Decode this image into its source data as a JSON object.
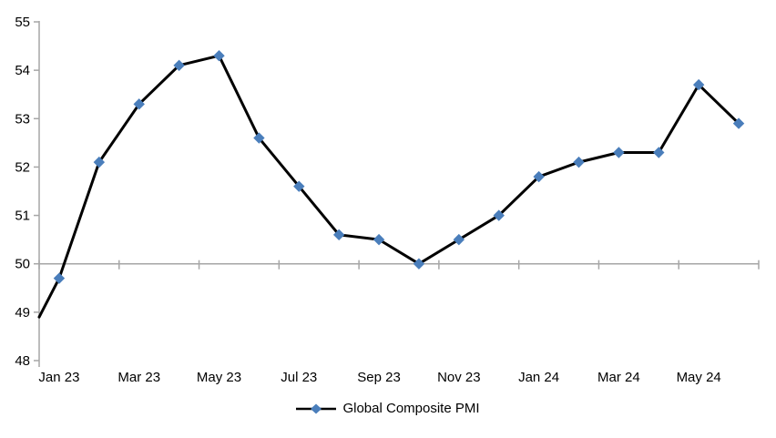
{
  "chart_data": {
    "type": "line",
    "title": "",
    "categories": [
      "Jan 23",
      "Feb 23",
      "Mar 23",
      "Apr 23",
      "May 23",
      "Jun 23",
      "Jul 23",
      "Aug 23",
      "Sep 23",
      "Oct 23",
      "Nov 23",
      "Dec 23",
      "Jan 24",
      "Feb 24",
      "Mar 24",
      "Apr 24",
      "May 24",
      "Jun 24"
    ],
    "series": [
      {
        "name": "Global Composite PMI",
        "values": [
          49.7,
          52.1,
          53.3,
          54.1,
          54.3,
          52.6,
          51.6,
          50.6,
          50.5,
          50.0,
          50.5,
          51.0,
          51.8,
          52.1,
          52.3,
          52.3,
          53.7,
          52.9
        ]
      }
    ],
    "left_edge_entry_value": 48.9,
    "ylim": [
      48,
      55
    ],
    "ytick_step": 1,
    "ytick_labels": [
      "48",
      "49",
      "50",
      "51",
      "52",
      "53",
      "54",
      "55"
    ],
    "xtick_labels_shown": [
      "Jan 23",
      "Mar 23",
      "May 23",
      "Jul 23",
      "Sep 23",
      "Nov 23",
      "Jan 24",
      "Mar 24",
      "May 24"
    ],
    "xlabel_every": 2,
    "category_axis_cross_value": 50,
    "gridlines": false,
    "legend_position": "bottom-center",
    "colors": {
      "line": "#000000",
      "marker": "#4A7EBB",
      "axis": "#A6A6A6",
      "text": "#000000"
    }
  }
}
